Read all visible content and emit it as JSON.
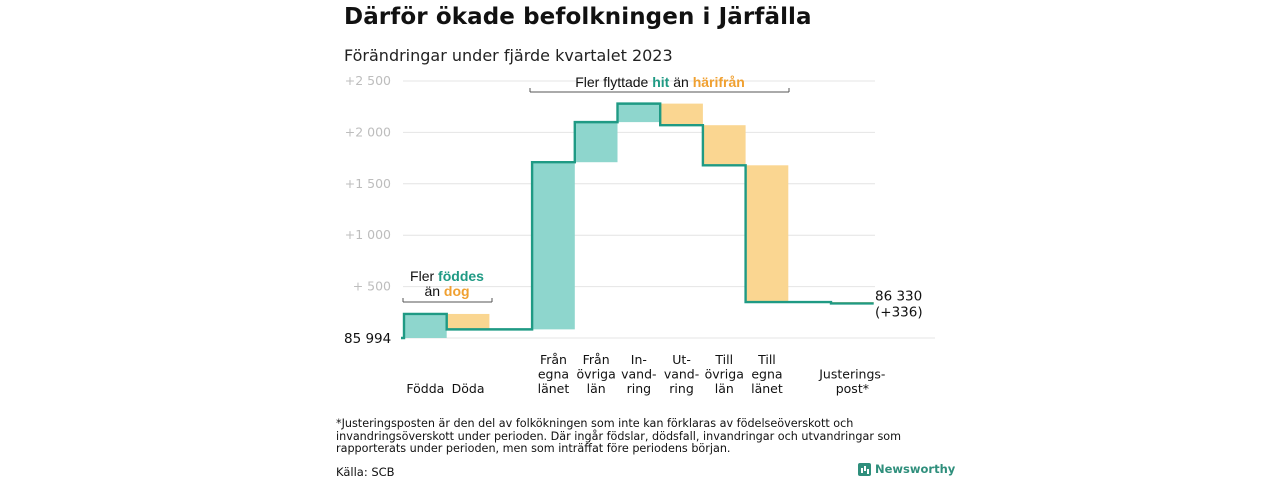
{
  "title": "Därför ökade befolkningen i Järfälla",
  "subtitle": "Förändringar under fjärde kvartalet 2023",
  "colors": {
    "increase": "#8ed6cd",
    "decrease": "#fad691",
    "line": "#1f9a84",
    "teal_text": "#1f9a84",
    "orange_text": "#f0a030"
  },
  "chart_data": {
    "type": "waterfall",
    "y_base": 85994,
    "yticks": [
      {
        "value": 86494,
        "label": "+  500"
      },
      {
        "value": 86994,
        "label": "+1  000"
      },
      {
        "value": 87494,
        "label": "+1  500"
      },
      {
        "value": 87994,
        "label": "+2  000"
      },
      {
        "value": 88494,
        "label": "+2  500"
      }
    ],
    "ylim": [
      85994,
      88494
    ],
    "start_label": "85  994",
    "end_label_line1": "86 330",
    "end_label_line2": "(+336)",
    "steps": [
      {
        "label": [
          "Födda"
        ],
        "start": 85994,
        "end": 86228
      },
      {
        "label": [
          "Döda"
        ],
        "start": 86228,
        "end": 86078
      },
      {
        "label": [],
        "start": 86078,
        "end": 86078
      },
      {
        "label": [
          "Från",
          "egna",
          "länet"
        ],
        "start": 86078,
        "end": 87704
      },
      {
        "label": [
          "Från",
          "övriga",
          "län"
        ],
        "start": 87704,
        "end": 88094
      },
      {
        "label": [
          "In-",
          "vand-",
          "ring"
        ],
        "start": 88094,
        "end": 88274
      },
      {
        "label": [
          "Ut-",
          "vand-",
          "ring"
        ],
        "start": 88274,
        "end": 88064
      },
      {
        "label": [
          "Till",
          "övriga",
          "län"
        ],
        "start": 88064,
        "end": 87674
      },
      {
        "label": [
          "Till",
          "egna",
          "länet"
        ],
        "start": 87674,
        "end": 86344
      },
      {
        "label": [],
        "start": 86344,
        "end": 86344
      },
      {
        "label": [
          "Justerings-",
          "post*"
        ],
        "start": 86344,
        "end": 86330
      }
    ],
    "annotations": {
      "births": {
        "line1_a": "Fler ",
        "line1_b": "föddes",
        "line2_a": "än ",
        "line2_b": "dog"
      },
      "migration": {
        "a": "Fler flyttade ",
        "b": "hit",
        "c": " än ",
        "d": "härifrån"
      }
    }
  },
  "footnote": "*Justeringsposten är den del av folkökningen som inte kan förklaras av födelseöverskott och invandringsöverskott under perioden. Där ingår födslar, dödsfall, invandringar och utvandringar som rapporterats under perioden, men som inträffat före periodens början.",
  "source": "Källa: SCB",
  "brand": "Newsworthy"
}
